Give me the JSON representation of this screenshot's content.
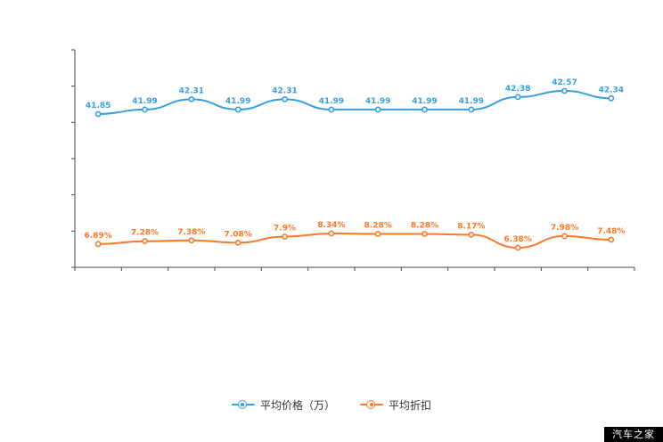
{
  "watermark": "汽车之家",
  "chart_data": {
    "type": "line",
    "title": "",
    "xlabel": "",
    "ylabel": "",
    "grid": false,
    "legend_position": "bottom",
    "axis_color": "#4a4a4a",
    "x_tick_labels_visible": false,
    "series": [
      {
        "name": "平均价格（万）",
        "color": "#369fe0",
        "values": [
          41.85,
          41.99,
          42.31,
          41.99,
          42.31,
          41.99,
          41.99,
          41.99,
          41.99,
          42.38,
          42.57,
          42.34
        ],
        "labels": [
          "41.85",
          "41.99",
          "42.31",
          "41.99",
          "42.31",
          "41.99",
          "41.99",
          "41.99",
          "41.99",
          "42.38",
          "42.57",
          "42.34"
        ]
      },
      {
        "name": "平均折扣",
        "color": "#ff7826",
        "values": [
          6.89,
          7.28,
          7.38,
          7.08,
          7.9,
          8.34,
          8.28,
          8.28,
          8.17,
          6.38,
          7.98,
          7.48
        ],
        "labels": [
          "6.89%",
          "7.28%",
          "7.38%",
          "7.08%",
          "7.9%",
          "8.34%",
          "8.28%",
          "8.28%",
          "8.17%",
          "6.38%",
          "7.98%",
          "7.48%"
        ]
      }
    ]
  }
}
